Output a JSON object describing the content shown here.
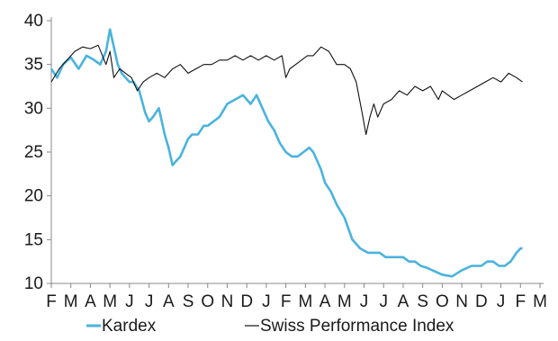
{
  "chart_data": {
    "type": "line",
    "title": "",
    "xlabel": "",
    "ylabel": "",
    "ylim": [
      10,
      40
    ],
    "y_ticks": [
      10,
      15,
      20,
      25,
      30,
      35,
      40
    ],
    "x_tick_labels": [
      "F",
      "M",
      "A",
      "M",
      "J",
      "J",
      "A",
      "S",
      "O",
      "N",
      "D",
      "J",
      "F",
      "M",
      "A",
      "M",
      "J",
      "J",
      "A",
      "S",
      "O",
      "N",
      "D",
      "J",
      "F",
      "M"
    ],
    "grid": false,
    "legend_position": "bottom",
    "series": [
      {
        "name": "Kardex",
        "color": "#4ab3de",
        "x": [
          0,
          0.3,
          0.6,
          1.0,
          1.4,
          1.8,
          2.2,
          2.5,
          2.8,
          3.0,
          3.2,
          3.4,
          3.6,
          3.8,
          4.0,
          4.2,
          4.5,
          4.8,
          5.0,
          5.2,
          5.5,
          5.8,
          6.0,
          6.2,
          6.4,
          6.6,
          6.8,
          7.0,
          7.2,
          7.5,
          7.8,
          8.0,
          8.3,
          8.6,
          9.0,
          9.4,
          9.8,
          10.2,
          10.5,
          10.8,
          11.1,
          11.4,
          11.7,
          12.0,
          12.3,
          12.6,
          12.9,
          13.2,
          13.4,
          13.6,
          13.8,
          14.0,
          14.3,
          14.6,
          15.0,
          15.4,
          15.8,
          16.2,
          16.5,
          16.8,
          17.1,
          17.4,
          17.7,
          18.0,
          18.3,
          18.6,
          18.9,
          19.2,
          19.5,
          20.0,
          20.5,
          21.0,
          21.5,
          22.0,
          22.3,
          22.6,
          22.9,
          23.2,
          23.5,
          23.8,
          24.0,
          24.1
        ],
        "values": [
          34.5,
          33.5,
          35.0,
          35.8,
          34.5,
          36.0,
          35.5,
          35.0,
          36.5,
          39.0,
          37.0,
          35.0,
          34.0,
          33.5,
          33.0,
          33.0,
          32.0,
          29.5,
          28.5,
          29.0,
          30.0,
          27.0,
          25.5,
          23.5,
          24.0,
          24.5,
          25.5,
          26.5,
          27.0,
          27.0,
          28.0,
          28.0,
          28.5,
          29.0,
          30.5,
          31.0,
          31.5,
          30.5,
          31.5,
          30.0,
          28.5,
          27.5,
          26.0,
          25.0,
          24.5,
          24.5,
          25.0,
          25.5,
          25.0,
          24.0,
          23.0,
          21.5,
          20.5,
          19.0,
          17.5,
          15.0,
          14.0,
          13.5,
          13.5,
          13.5,
          13.0,
          13.0,
          13.0,
          13.0,
          12.5,
          12.5,
          12.0,
          11.8,
          11.5,
          11.0,
          10.8,
          11.5,
          12.0,
          12.0,
          12.5,
          12.5,
          12.0,
          12.0,
          12.5,
          13.5,
          14.0,
          14.0
        ]
      },
      {
        "name": "Swiss Performance Index",
        "color": "#111111",
        "x": [
          0,
          0.4,
          0.8,
          1.2,
          1.6,
          2.0,
          2.4,
          2.8,
          3.0,
          3.2,
          3.5,
          3.8,
          4.1,
          4.4,
          4.7,
          5.0,
          5.4,
          5.8,
          6.2,
          6.6,
          7.0,
          7.4,
          7.8,
          8.2,
          8.6,
          9.0,
          9.4,
          9.8,
          10.2,
          10.6,
          11.0,
          11.4,
          11.8,
          12.0,
          12.2,
          12.5,
          12.8,
          13.1,
          13.4,
          13.8,
          14.2,
          14.6,
          15.0,
          15.3,
          15.6,
          15.9,
          16.1,
          16.3,
          16.5,
          16.7,
          17.0,
          17.4,
          17.8,
          18.2,
          18.6,
          19.0,
          19.4,
          19.8,
          20.0,
          20.3,
          20.6,
          21.0,
          21.4,
          21.8,
          22.2,
          22.6,
          23.0,
          23.4,
          23.8,
          24.1
        ],
        "values": [
          33.0,
          34.5,
          35.5,
          36.5,
          37.0,
          36.8,
          37.2,
          35.0,
          36.5,
          33.5,
          34.5,
          34.0,
          33.5,
          32.0,
          33.0,
          33.5,
          34.0,
          33.5,
          34.5,
          35.0,
          34.0,
          34.5,
          35.0,
          35.0,
          35.5,
          35.5,
          36.0,
          35.5,
          36.0,
          35.5,
          36.0,
          35.5,
          36.0,
          33.5,
          34.5,
          35.0,
          35.5,
          36.0,
          36.0,
          37.0,
          36.5,
          35.0,
          35.0,
          34.5,
          33.0,
          29.5,
          27.0,
          29.0,
          30.5,
          29.0,
          30.5,
          31.0,
          32.0,
          31.5,
          32.5,
          32.0,
          32.5,
          31.0,
          32.0,
          31.5,
          31.0,
          31.5,
          32.0,
          32.5,
          33.0,
          33.5,
          33.0,
          34.0,
          33.5,
          33.0
        ]
      }
    ]
  }
}
